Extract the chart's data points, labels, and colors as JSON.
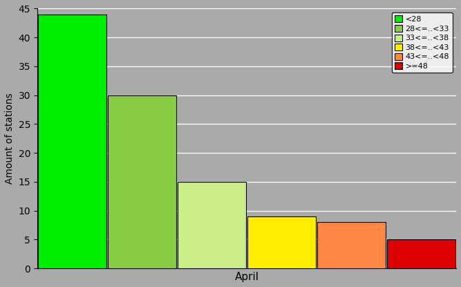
{
  "bars": [
    {
      "label": "<28",
      "value": 44,
      "color": "#00EE00"
    },
    {
      "label": "28<=..<33",
      "value": 30,
      "color": "#88CC44"
    },
    {
      "label": "33<=..<38",
      "value": 15,
      "color": "#CCEE88"
    },
    {
      "label": "38<=..<43",
      "value": 9,
      "color": "#FFEE00"
    },
    {
      "label": "43<=..<48",
      "value": 8,
      "color": "#FF8844"
    },
    {
      "label": ">=48",
      "value": 5,
      "color": "#DD0000"
    }
  ],
  "ylabel": "Amount of stations",
  "xlabel": "April",
  "ylim": [
    0,
    45
  ],
  "yticks": [
    0,
    5,
    10,
    15,
    20,
    25,
    30,
    35,
    40,
    45
  ],
  "bg_color": "#AAAAAA",
  "fig_bg_color": "#AAAAAA",
  "grid_color": "#FFFFFF"
}
